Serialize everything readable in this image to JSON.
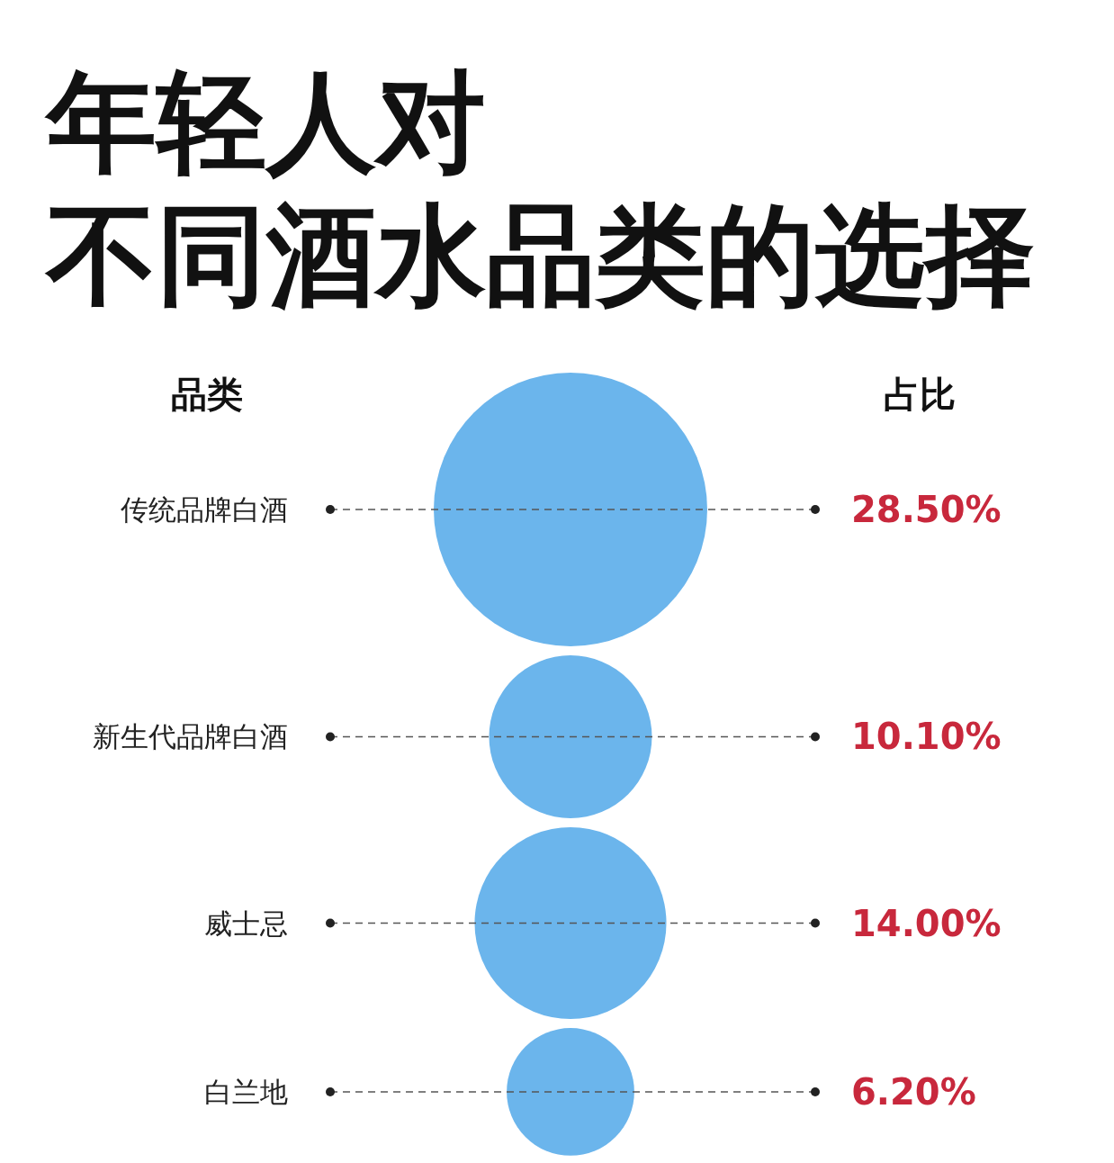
{
  "chart_data": {
    "type": "other",
    "title": "年轻人对",
    "subtitle": "不同酒水品类的选择",
    "annotations": [
      "品类",
      "占比"
    ],
    "categories": [
      "传统品牌白酒",
      "新生代品牌白酒",
      "威士忌",
      "白兰地"
    ],
    "values": [
      28.5,
      10.1,
      14.0,
      6.2
    ],
    "value_labels": [
      "28.50%",
      "10.10%",
      "14.00%",
      "6.20%"
    ],
    "color": "#6bb5ec"
  }
}
